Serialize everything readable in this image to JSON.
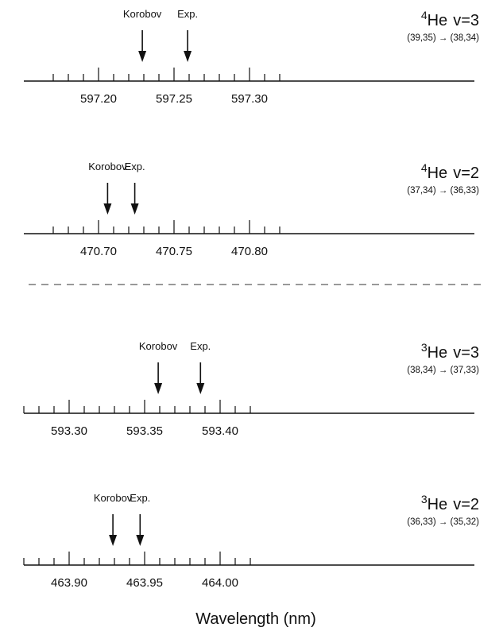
{
  "panels": [
    {
      "mass_number": "4",
      "isotope": "He",
      "level": "v=3",
      "transition": "(39,35) → (38,34)",
      "tick_labels": [
        "597.20",
        "597.25",
        "597.30"
      ],
      "wavelength_axis": {
        "min": 597.17,
        "max": 597.32,
        "major_step": 0.05,
        "minor_step": 0.01
      },
      "markers": [
        {
          "label": "Korobov",
          "wavelength_nm": 597.229
        },
        {
          "label": "Exp.",
          "wavelength_nm": 597.259
        }
      ]
    },
    {
      "mass_number": "4",
      "isotope": "He",
      "level": "v=2",
      "transition": "(37,34) → (36,33)",
      "tick_labels": [
        "470.70",
        "470.75",
        "470.80"
      ],
      "wavelength_axis": {
        "min": 470.67,
        "max": 470.82,
        "major_step": 0.05,
        "minor_step": 0.01
      },
      "markers": [
        {
          "label": "Korobov",
          "wavelength_nm": 470.706
        },
        {
          "label": "Exp.",
          "wavelength_nm": 470.724
        }
      ]
    },
    {
      "mass_number": "3",
      "isotope": "He",
      "level": "v=3",
      "transition": "(38,34) → (37,33)",
      "tick_labels": [
        "593.30",
        "593.35",
        "593.40"
      ],
      "wavelength_axis": {
        "min": 593.27,
        "max": 593.42,
        "major_step": 0.05,
        "minor_step": 0.01
      },
      "markers": [
        {
          "label": "Korobov",
          "wavelength_nm": 593.359
        },
        {
          "label": "Exp.",
          "wavelength_nm": 593.387
        }
      ]
    },
    {
      "mass_number": "3",
      "isotope": "He",
      "level": "v=2",
      "transition": "(36,33) → (35,32)",
      "tick_labels": [
        "463.90",
        "463.95",
        "464.00"
      ],
      "wavelength_axis": {
        "min": 463.87,
        "max": 464.02,
        "major_step": 0.05,
        "minor_step": 0.01
      },
      "markers": [
        {
          "label": "Korobov",
          "wavelength_nm": 463.929
        },
        {
          "label": "Exp.",
          "wavelength_nm": 463.947
        }
      ]
    }
  ],
  "axis_title": "Wavelength (nm)"
}
